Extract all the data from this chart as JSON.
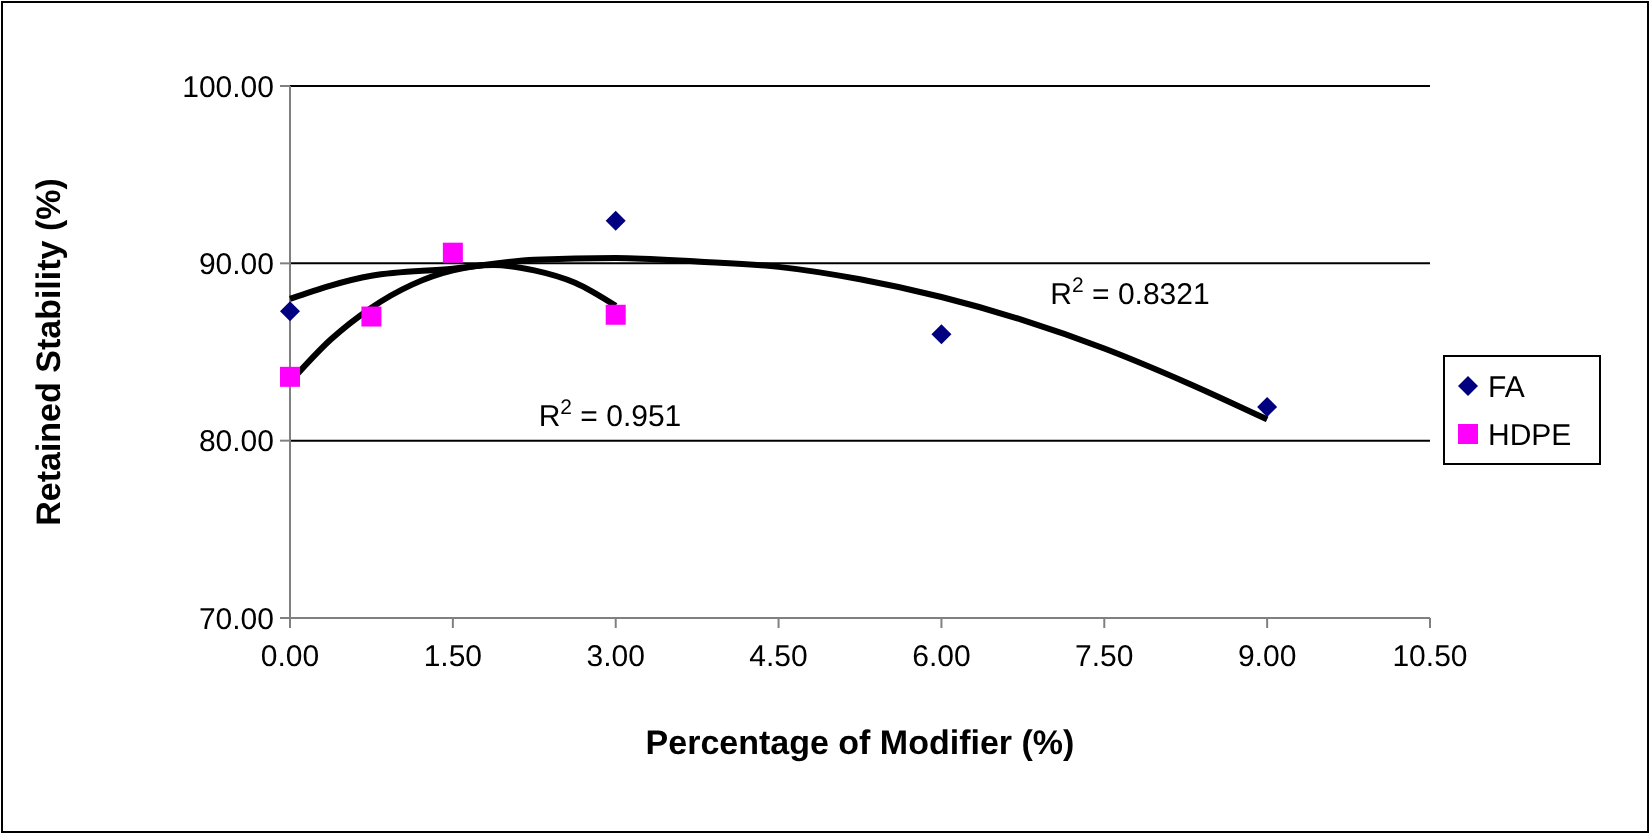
{
  "chart_data": {
    "type": "scatter",
    "xlabel": "Percentage of Modifier (%)",
    "ylabel": "Retained Stability (%)",
    "xlim": [
      0,
      10.5
    ],
    "xticks": [
      {
        "value": 0,
        "label": "0.00"
      },
      {
        "value": 1.5,
        "label": "1.50"
      },
      {
        "value": 3,
        "label": "3.00"
      },
      {
        "value": 4.5,
        "label": "4.50"
      },
      {
        "value": 6,
        "label": "6.00"
      },
      {
        "value": 7.5,
        "label": "7.50"
      },
      {
        "value": 9,
        "label": "9.00"
      },
      {
        "value": 10.5,
        "label": "10.50"
      }
    ],
    "ylim": [
      70,
      100
    ],
    "yticks": [
      {
        "value": 70,
        "label": "70.00"
      },
      {
        "value": 80,
        "label": "80.00"
      },
      {
        "value": 90,
        "label": "90.00"
      },
      {
        "value": 100,
        "label": "100.00"
      }
    ],
    "grid": "y",
    "legend": "right",
    "series": [
      {
        "type": "line",
        "color": "#000000",
        "marker": "none",
        "x": [
          0,
          0.75,
          1.5,
          2.25,
          3,
          3.75,
          4.5,
          5.25,
          6,
          6.75,
          7.5,
          8.25,
          9
        ],
        "values": [
          88.0,
          89.3,
          89.7,
          90.2,
          90.3,
          90.1,
          89.8,
          89.1,
          88.1,
          86.8,
          85.2,
          83.3,
          81.2
        ]
      },
      {
        "type": "line",
        "color": "#000000",
        "marker": "none",
        "x": [
          0,
          0.375,
          0.75,
          1.125,
          1.5,
          1.875,
          2.25,
          2.625,
          3
        ],
        "values": [
          83.3,
          85.7,
          87.5,
          88.8,
          89.6,
          89.9,
          89.6,
          88.9,
          87.6
        ]
      },
      {
        "name": "FA",
        "color": "#000080",
        "marker": "diamond",
        "x": [
          0,
          3,
          6,
          9
        ],
        "values": [
          87.3,
          92.4,
          86.0,
          81.9
        ]
      },
      {
        "name": "HDPE",
        "color": "#ff00ff",
        "marker": "square",
        "x": [
          0,
          0.75,
          1.5,
          3
        ],
        "values": [
          83.6,
          87.0,
          90.6,
          87.1
        ]
      }
    ],
    "annotations": [
      "R$^{2}$ = 0.951",
      "R$^{2}$ = 0.8321"
    ]
  }
}
